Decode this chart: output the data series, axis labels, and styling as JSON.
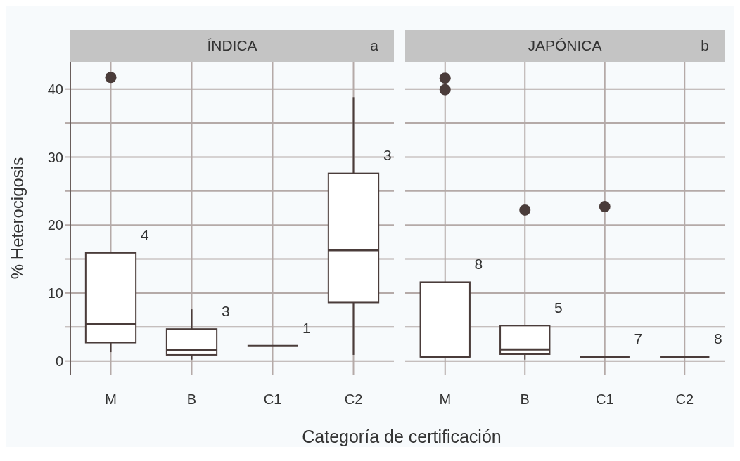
{
  "chart_data": [
    {
      "type": "box",
      "title": "ÍNDICA",
      "subtitle": "a",
      "ylabel": "% Heterocigosis",
      "xlabel": "Categoría de certificación",
      "categories": [
        "M",
        "B",
        "C1",
        "C2"
      ],
      "series": [
        {
          "color": "#4a3c3a",
          "boxes": [
            {
              "low": 1.3,
              "q1": 2.7,
              "median": 5.4,
              "q3": 15.9,
              "high": 15.9,
              "outliers": [
                41.7
              ]
            },
            {
              "low": 0.2,
              "q1": 0.9,
              "median": 1.6,
              "q3": 4.7,
              "high": 7.6
            },
            {
              "low": 2.2,
              "q1": 2.2,
              "median": 2.2,
              "q3": 2.2,
              "high": 2.2
            },
            {
              "low": 0.9,
              "q1": 8.6,
              "median": 16.3,
              "q3": 27.6,
              "high": 38.8
            }
          ]
        }
      ],
      "annotations": [
        "4",
        "3",
        "1",
        "3"
      ],
      "ylim": [
        -2,
        44
      ],
      "yticks": [
        0,
        {
          "value": 5,
          "label": null
        },
        10,
        {
          "value": 15,
          "label": null
        },
        20,
        {
          "value": 25,
          "label": null
        },
        30,
        {
          "value": 35,
          "label": null
        },
        40
      ],
      "grid": true
    },
    {
      "type": "box",
      "title": "JAPÓNICA",
      "subtitle": "b",
      "categories": [
        "M",
        "B",
        "C1",
        "C2"
      ],
      "series": [
        {
          "color": "#4a3c3a",
          "boxes": [
            {
              "low": 0.6,
              "q1": 0.6,
              "median": 0.6,
              "q3": 11.6,
              "high": 11.6,
              "outliers": [
                41.6,
                39.9
              ]
            },
            {
              "low": 0.2,
              "q1": 1.0,
              "median": 1.7,
              "q3": 5.2,
              "high": 5.2,
              "outliers": [
                22.2
              ]
            },
            {
              "low": 0.6,
              "q1": 0.6,
              "median": 0.6,
              "q3": 0.6,
              "high": 0.6,
              "outliers": [
                22.7
              ]
            },
            {
              "low": 0.6,
              "q1": 0.6,
              "median": 0.6,
              "q3": 0.6,
              "high": 0.6
            }
          ]
        }
      ],
      "annotations": [
        "8",
        "5",
        "7",
        "8"
      ],
      "ylim": [
        -2,
        44
      ],
      "yticks": [
        0,
        {
          "value": 5,
          "label": null
        },
        10,
        {
          "value": 15,
          "label": null
        },
        20,
        {
          "value": 25,
          "label": null
        },
        30,
        {
          "value": 35,
          "label": null
        },
        40
      ],
      "grid": true,
      "tick_labels": "x"
    }
  ]
}
